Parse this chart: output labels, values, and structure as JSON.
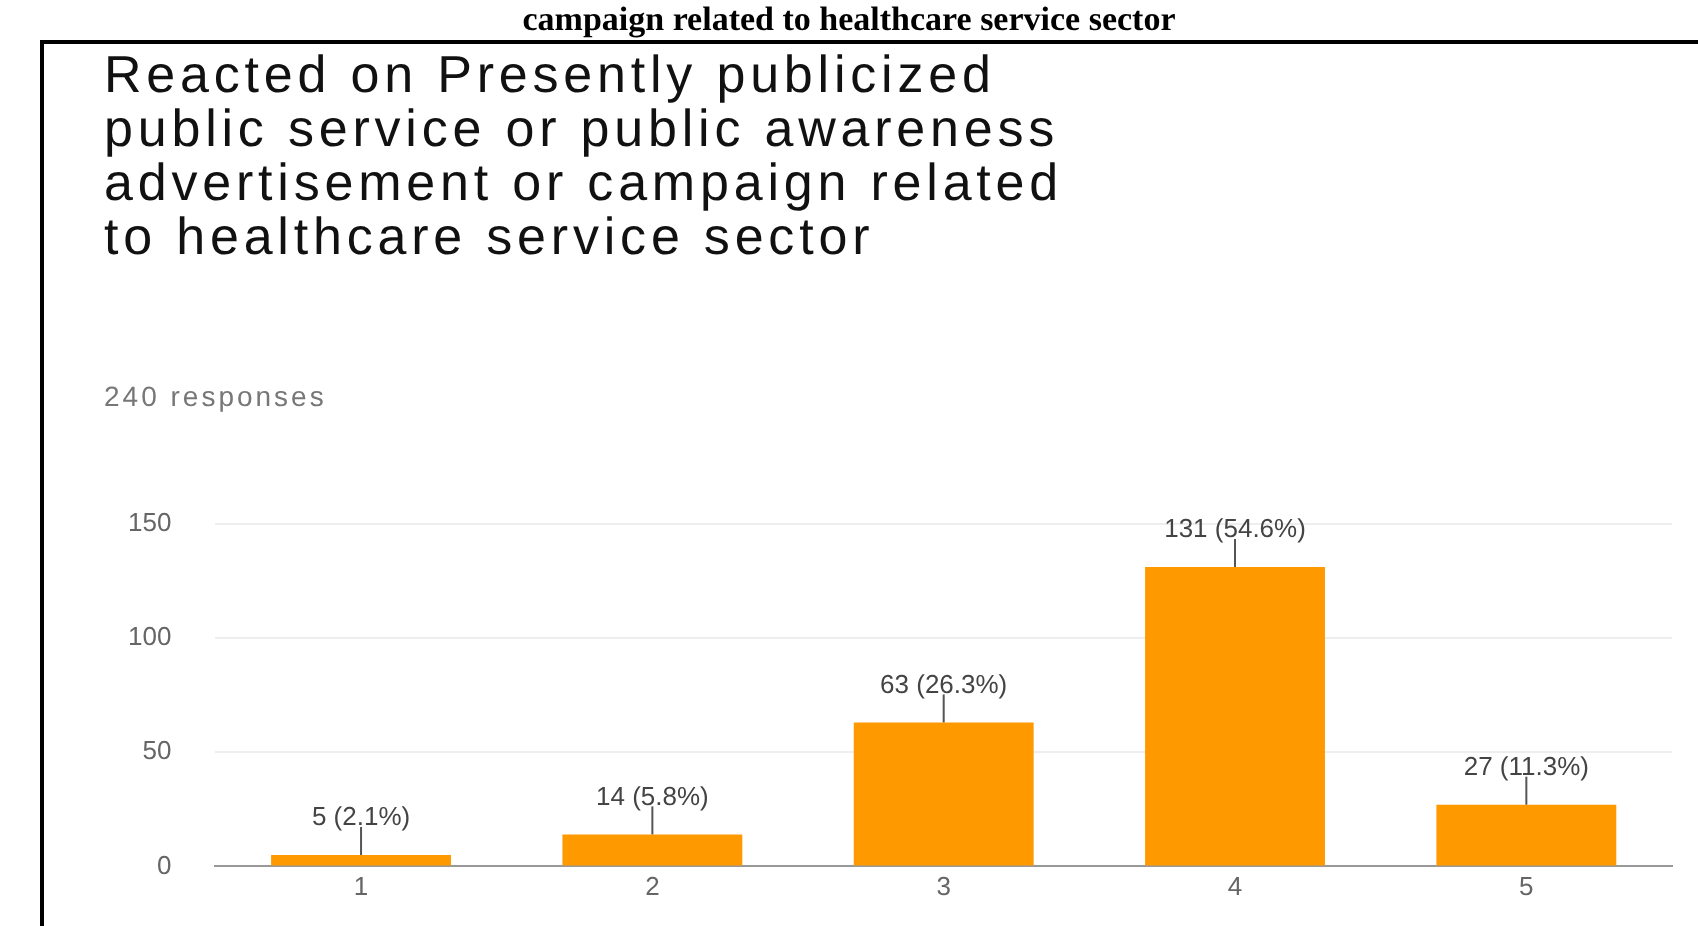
{
  "chart_data": {
    "type": "bar",
    "title": "Reacted on Presently publicized public service or public awareness advertisement or campaign related to healthcare service sector",
    "subtitle": "240 responses",
    "annotations": [
      "campaign related to healthcare service sector"
    ],
    "categories": [
      "1",
      "2",
      "3",
      "4",
      "5"
    ],
    "values": [
      5,
      14,
      63,
      131,
      27
    ],
    "color": "#ff9900",
    "value_labels": [
      "5 (2.1%)",
      "14 (5.8%)",
      "63 (26.3%)",
      "131 (54.6%)",
      "27 (11.3%)"
    ],
    "ylim": [
      0,
      150
    ],
    "yticks": [
      0,
      50,
      100,
      150
    ],
    "grid": "y"
  }
}
